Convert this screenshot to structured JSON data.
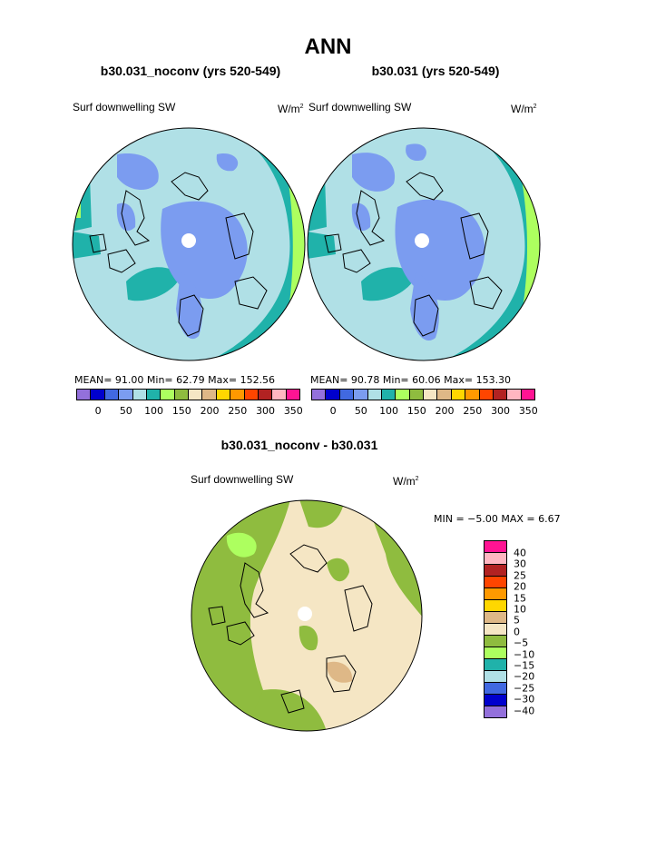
{
  "title": "ANN",
  "panel_left": {
    "subtitle": "b30.031_noconv (yrs 520-549)",
    "variable": "Surf downwelling SW",
    "units_base": "W/m",
    "units_exp": "2",
    "stats": "MEAN=   91.00   Min=   62.79   Max=  152.56"
  },
  "panel_right": {
    "subtitle": "b30.031 (yrs 520-549)",
    "variable": "Surf downwelling SW",
    "units_base": "W/m",
    "units_exp": "2",
    "stats": "MEAN=   90.78   Min=   60.06   Max=  153.30"
  },
  "panel_diff": {
    "subtitle": "b30.031_noconv - b30.031",
    "variable": "Surf downwelling SW",
    "units_base": "W/m",
    "units_exp": "2",
    "stats": "MIN =   −5.00  MAX =     6.67"
  },
  "colors": {
    "abs_scale": [
      "#9370db",
      "#0000cd",
      "#4169e1",
      "#7b9cf0",
      "#b0e0e6",
      "#20b2aa",
      "#adff5f",
      "#8fbc3f",
      "#f5e6c4",
      "#deb887",
      "#ffd700",
      "#ff9900",
      "#ff4500",
      "#b22222",
      "#ffb6c1",
      "#ff1493"
    ],
    "diff_scale": [
      "#ff1493",
      "#ffb6c1",
      "#b22222",
      "#ff4500",
      "#ff9900",
      "#ffd700",
      "#deb887",
      "#f5e6c4",
      "#8fbc3f",
      "#adff5f",
      "#20b2aa",
      "#b0e0e6",
      "#4169e1",
      "#0000cd",
      "#9370db"
    ],
    "land_outline": "#000000",
    "pole_hole": "#ffffff"
  },
  "abs_ticks": [
    "0",
    "50",
    "100",
    "150",
    "200",
    "250",
    "300",
    "350"
  ],
  "diff_ticks": [
    "40",
    "30",
    "25",
    "20",
    "15",
    "10",
    "5",
    "0",
    "−5",
    "−10",
    "−15",
    "−20",
    "−25",
    "−30",
    "−40"
  ]
}
